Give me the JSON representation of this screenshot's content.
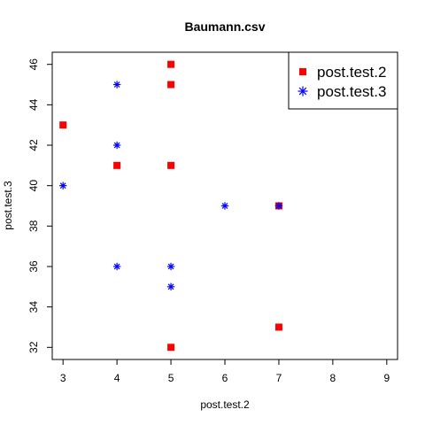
{
  "chart_data": {
    "type": "scatter",
    "title": "Baumann.csv",
    "xlabel": "post.test.2",
    "ylabel": "post.test.3",
    "xlim": [
      2.8,
      9.2
    ],
    "ylim": [
      31.4,
      46.6
    ],
    "xticks": [
      3,
      4,
      5,
      6,
      7,
      8,
      9
    ],
    "yticks": [
      32,
      34,
      36,
      38,
      40,
      42,
      44,
      46
    ],
    "grid": false,
    "legend_position": "top-right",
    "series": [
      {
        "name": "post.test.2",
        "marker": "square",
        "color": "#ff0000",
        "points": [
          {
            "x": 3,
            "y": 43
          },
          {
            "x": 4,
            "y": 41
          },
          {
            "x": 5,
            "y": 46
          },
          {
            "x": 5,
            "y": 45
          },
          {
            "x": 5,
            "y": 41
          },
          {
            "x": 5,
            "y": 32
          },
          {
            "x": 7,
            "y": 39
          },
          {
            "x": 7,
            "y": 33
          }
        ]
      },
      {
        "name": "post.test.3",
        "marker": "asterisk",
        "color": "#0000ff",
        "points": [
          {
            "x": 3,
            "y": 40
          },
          {
            "x": 4,
            "y": 45
          },
          {
            "x": 4,
            "y": 42
          },
          {
            "x": 4,
            "y": 36
          },
          {
            "x": 5,
            "y": 36
          },
          {
            "x": 5,
            "y": 35
          },
          {
            "x": 6,
            "y": 39
          },
          {
            "x": 7,
            "y": 39
          }
        ]
      }
    ]
  }
}
